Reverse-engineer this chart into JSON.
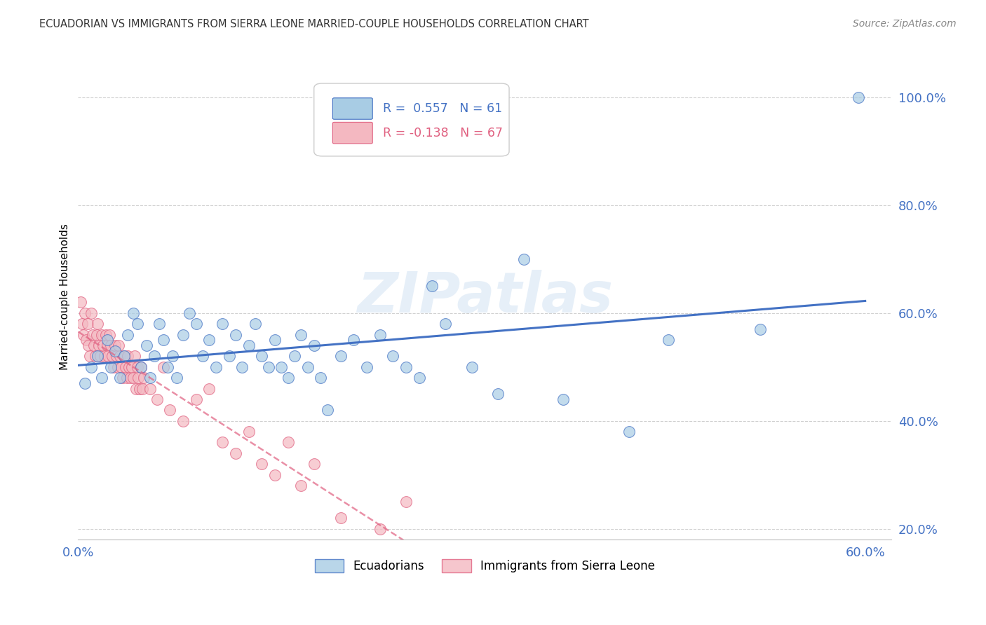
{
  "title": "ECUADORIAN VS IMMIGRANTS FROM SIERRA LEONE MARRIED-COUPLE HOUSEHOLDS CORRELATION CHART",
  "source": "Source: ZipAtlas.com",
  "ylabel": "Married-couple Households",
  "xlim": [
    0.0,
    0.62
  ],
  "ylim": [
    0.18,
    1.08
  ],
  "ytick_vals": [
    0.2,
    0.4,
    0.6,
    0.8,
    1.0
  ],
  "ytick_labels": [
    "20.0%",
    "40.0%",
    "60.0%",
    "80.0%",
    "100.0%"
  ],
  "xtick_vals": [
    0.0,
    0.1,
    0.2,
    0.3,
    0.4,
    0.5,
    0.6
  ],
  "xtick_labels": [
    "0.0%",
    "",
    "",
    "",
    "",
    "",
    "60.0%"
  ],
  "blue_R": 0.557,
  "blue_N": 61,
  "pink_R": -0.138,
  "pink_N": 67,
  "blue_color": "#a8cce4",
  "pink_color": "#f4b8c1",
  "blue_line_color": "#4472c4",
  "pink_line_color": "#e06080",
  "legend_blue_text": "Ecuadorians",
  "legend_pink_text": "Immigrants from Sierra Leone",
  "watermark": "ZIPatlas",
  "blue_scatter_x": [
    0.005,
    0.01,
    0.015,
    0.018,
    0.022,
    0.025,
    0.028,
    0.032,
    0.035,
    0.038,
    0.042,
    0.045,
    0.048,
    0.052,
    0.055,
    0.058,
    0.062,
    0.065,
    0.068,
    0.072,
    0.075,
    0.08,
    0.085,
    0.09,
    0.095,
    0.1,
    0.105,
    0.11,
    0.115,
    0.12,
    0.125,
    0.13,
    0.135,
    0.14,
    0.145,
    0.15,
    0.155,
    0.16,
    0.165,
    0.17,
    0.175,
    0.18,
    0.185,
    0.19,
    0.2,
    0.21,
    0.22,
    0.23,
    0.24,
    0.25,
    0.26,
    0.27,
    0.28,
    0.3,
    0.32,
    0.34,
    0.37,
    0.42,
    0.45,
    0.52,
    0.595
  ],
  "blue_scatter_y": [
    0.47,
    0.5,
    0.52,
    0.48,
    0.55,
    0.5,
    0.53,
    0.48,
    0.52,
    0.56,
    0.6,
    0.58,
    0.5,
    0.54,
    0.48,
    0.52,
    0.58,
    0.55,
    0.5,
    0.52,
    0.48,
    0.56,
    0.6,
    0.58,
    0.52,
    0.55,
    0.5,
    0.58,
    0.52,
    0.56,
    0.5,
    0.54,
    0.58,
    0.52,
    0.5,
    0.55,
    0.5,
    0.48,
    0.52,
    0.56,
    0.5,
    0.54,
    0.48,
    0.42,
    0.52,
    0.55,
    0.5,
    0.56,
    0.52,
    0.5,
    0.48,
    0.65,
    0.58,
    0.5,
    0.45,
    0.7,
    0.44,
    0.38,
    0.55,
    0.57,
    1.0
  ],
  "pink_scatter_x": [
    0.002,
    0.003,
    0.004,
    0.005,
    0.006,
    0.007,
    0.008,
    0.009,
    0.01,
    0.011,
    0.012,
    0.013,
    0.014,
    0.015,
    0.016,
    0.017,
    0.018,
    0.019,
    0.02,
    0.021,
    0.022,
    0.023,
    0.024,
    0.025,
    0.026,
    0.027,
    0.028,
    0.029,
    0.03,
    0.031,
    0.032,
    0.033,
    0.034,
    0.035,
    0.036,
    0.037,
    0.038,
    0.039,
    0.04,
    0.041,
    0.042,
    0.043,
    0.044,
    0.045,
    0.046,
    0.047,
    0.048,
    0.049,
    0.05,
    0.055,
    0.06,
    0.065,
    0.07,
    0.08,
    0.09,
    0.1,
    0.11,
    0.12,
    0.13,
    0.14,
    0.15,
    0.16,
    0.17,
    0.18,
    0.2,
    0.23,
    0.25
  ],
  "pink_scatter_y": [
    0.62,
    0.58,
    0.56,
    0.6,
    0.55,
    0.58,
    0.54,
    0.52,
    0.6,
    0.56,
    0.54,
    0.52,
    0.56,
    0.58,
    0.54,
    0.52,
    0.56,
    0.54,
    0.52,
    0.56,
    0.54,
    0.52,
    0.56,
    0.54,
    0.52,
    0.5,
    0.54,
    0.52,
    0.5,
    0.54,
    0.52,
    0.5,
    0.48,
    0.52,
    0.5,
    0.48,
    0.52,
    0.5,
    0.48,
    0.5,
    0.48,
    0.52,
    0.46,
    0.5,
    0.48,
    0.46,
    0.5,
    0.46,
    0.48,
    0.46,
    0.44,
    0.5,
    0.42,
    0.4,
    0.44,
    0.46,
    0.36,
    0.34,
    0.38,
    0.32,
    0.3,
    0.36,
    0.28,
    0.32,
    0.22,
    0.2,
    0.25
  ]
}
